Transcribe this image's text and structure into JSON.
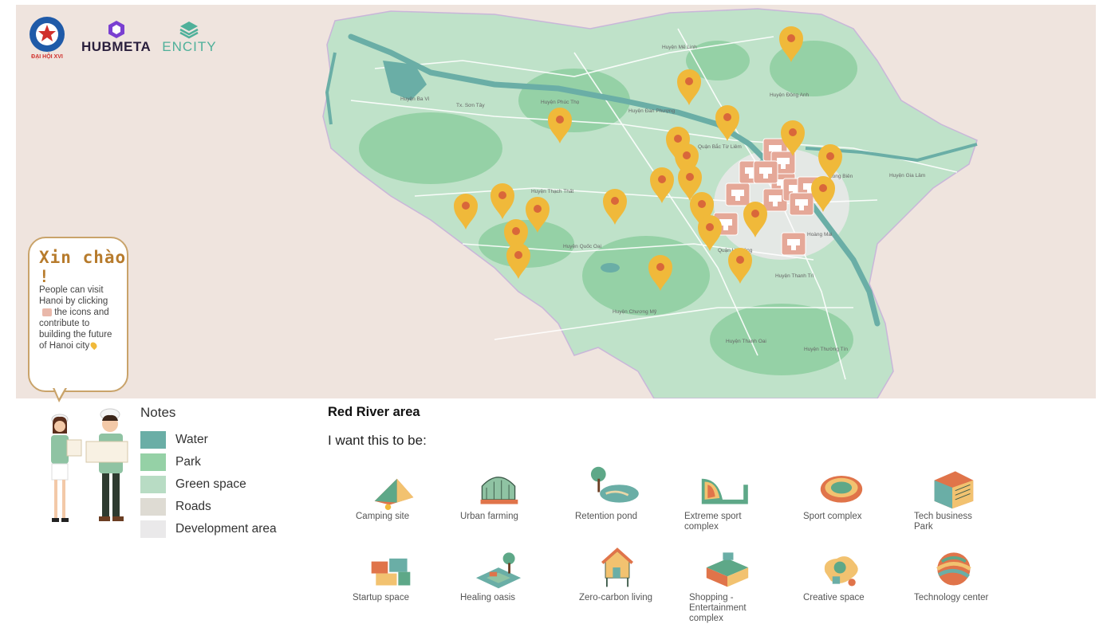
{
  "logos": {
    "daihoi": "ĐẠI HỘI XVI",
    "hubmeta": "HUBMETA",
    "encity": "ENCITY"
  },
  "bubble": {
    "greeting": "Xin chào !",
    "message_parts": [
      "People can visit Hanoi by clicking",
      "the icons and contribute to building the future of Hanoi city"
    ]
  },
  "notes": {
    "title": "Notes",
    "items": [
      {
        "label": "Water",
        "color": "#6aaea6"
      },
      {
        "label": "Park",
        "color": "#95d1a6"
      },
      {
        "label": "Green space",
        "color": "#b8dcc4"
      },
      {
        "label": "Roads",
        "color": "#dedbd3"
      },
      {
        "label": "Development area",
        "color": "#eae9ea"
      }
    ]
  },
  "area": {
    "title": "Red River area",
    "prompt": "I want this to be:"
  },
  "options": [
    {
      "label": "Camping site",
      "icon": "camping-tent-icon"
    },
    {
      "label": "Urban farming",
      "icon": "greenhouse-icon"
    },
    {
      "label": "Retention pond",
      "icon": "pond-icon"
    },
    {
      "label": "Extreme sport complex",
      "icon": "skate-ramp-icon"
    },
    {
      "label": "Sport complex",
      "icon": "stadium-icon"
    },
    {
      "label": "Tech business Park",
      "icon": "tech-building-icon"
    },
    {
      "label": "Startup space",
      "icon": "container-office-icon"
    },
    {
      "label": "Healing oasis",
      "icon": "garden-bench-icon"
    },
    {
      "label": "Zero-carbon living",
      "icon": "eco-house-icon"
    },
    {
      "label": "Shopping - Entertainment complex",
      "icon": "mall-icon"
    },
    {
      "label": "Creative space",
      "icon": "creative-hub-icon"
    },
    {
      "label": "Technology center",
      "icon": "tech-sphere-icon"
    }
  ],
  "map": {
    "place_labels": [
      "Huyện Mê Linh",
      "Huyện Đông Anh",
      "Huyện Ba Vì",
      "Tx. Sơn Tây",
      "Huyện Phúc Thọ",
      "Huyện Đan Phượng",
      "Quận Bắc Từ Liêm",
      "Huyện Thạch Thất",
      "Huyện Quốc Oai",
      "Huyện Chương Mỹ",
      "Huyện Thanh Oai",
      "Huyện Thường Tín",
      "Huyện Thanh Trì",
      "Long Biên",
      "Huyện Gia Lâm",
      "Hoàng Mai",
      "Quận Hà Đông"
    ],
    "pin_color": "#f0b93a",
    "site_marker_color": "#e5a898"
  }
}
